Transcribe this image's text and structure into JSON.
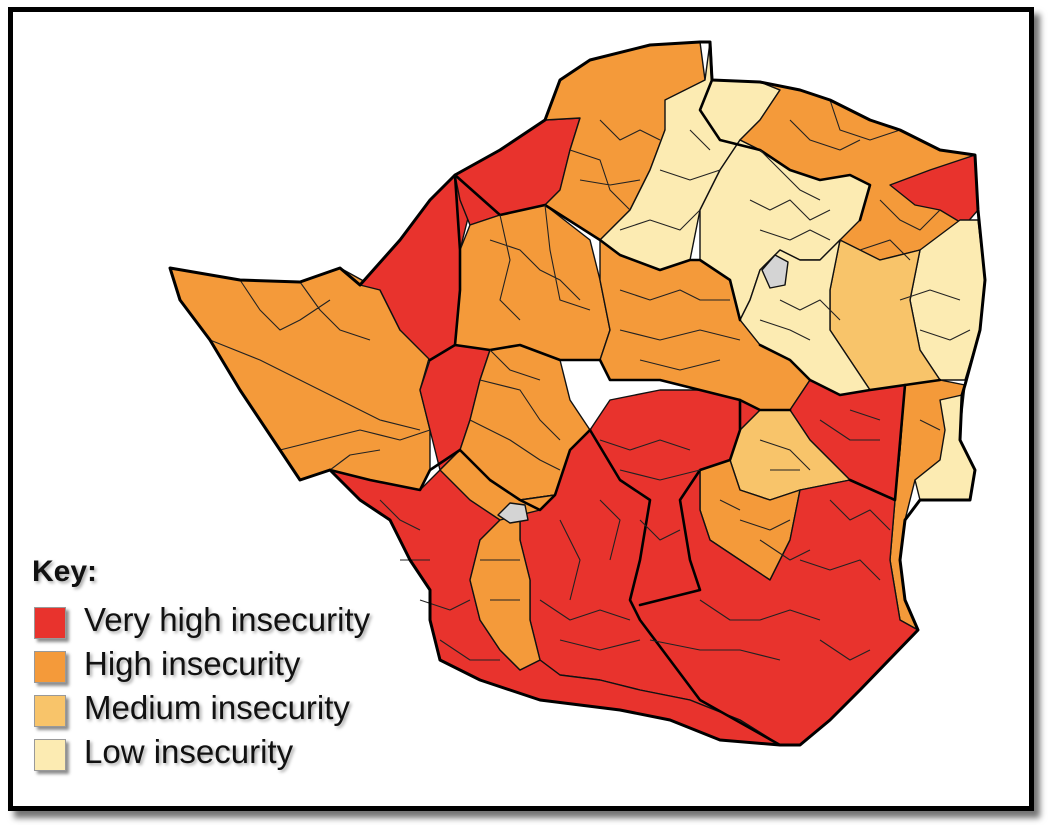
{
  "map": {
    "colors": {
      "very_high": "#e8332d",
      "high": "#f49a3a",
      "medium": "#f8c46a",
      "low": "#fcebb2",
      "urban": "#d4d4d4"
    }
  },
  "key": {
    "title": "Key:",
    "items": [
      {
        "label": "Very high insecurity",
        "color": "#e8332d"
      },
      {
        "label": "High insecurity",
        "color": "#f49a3a"
      },
      {
        "label": "Medium insecurity",
        "color": "#f8c46a"
      },
      {
        "label": "Low insecurity",
        "color": "#fcebb2"
      }
    ]
  }
}
